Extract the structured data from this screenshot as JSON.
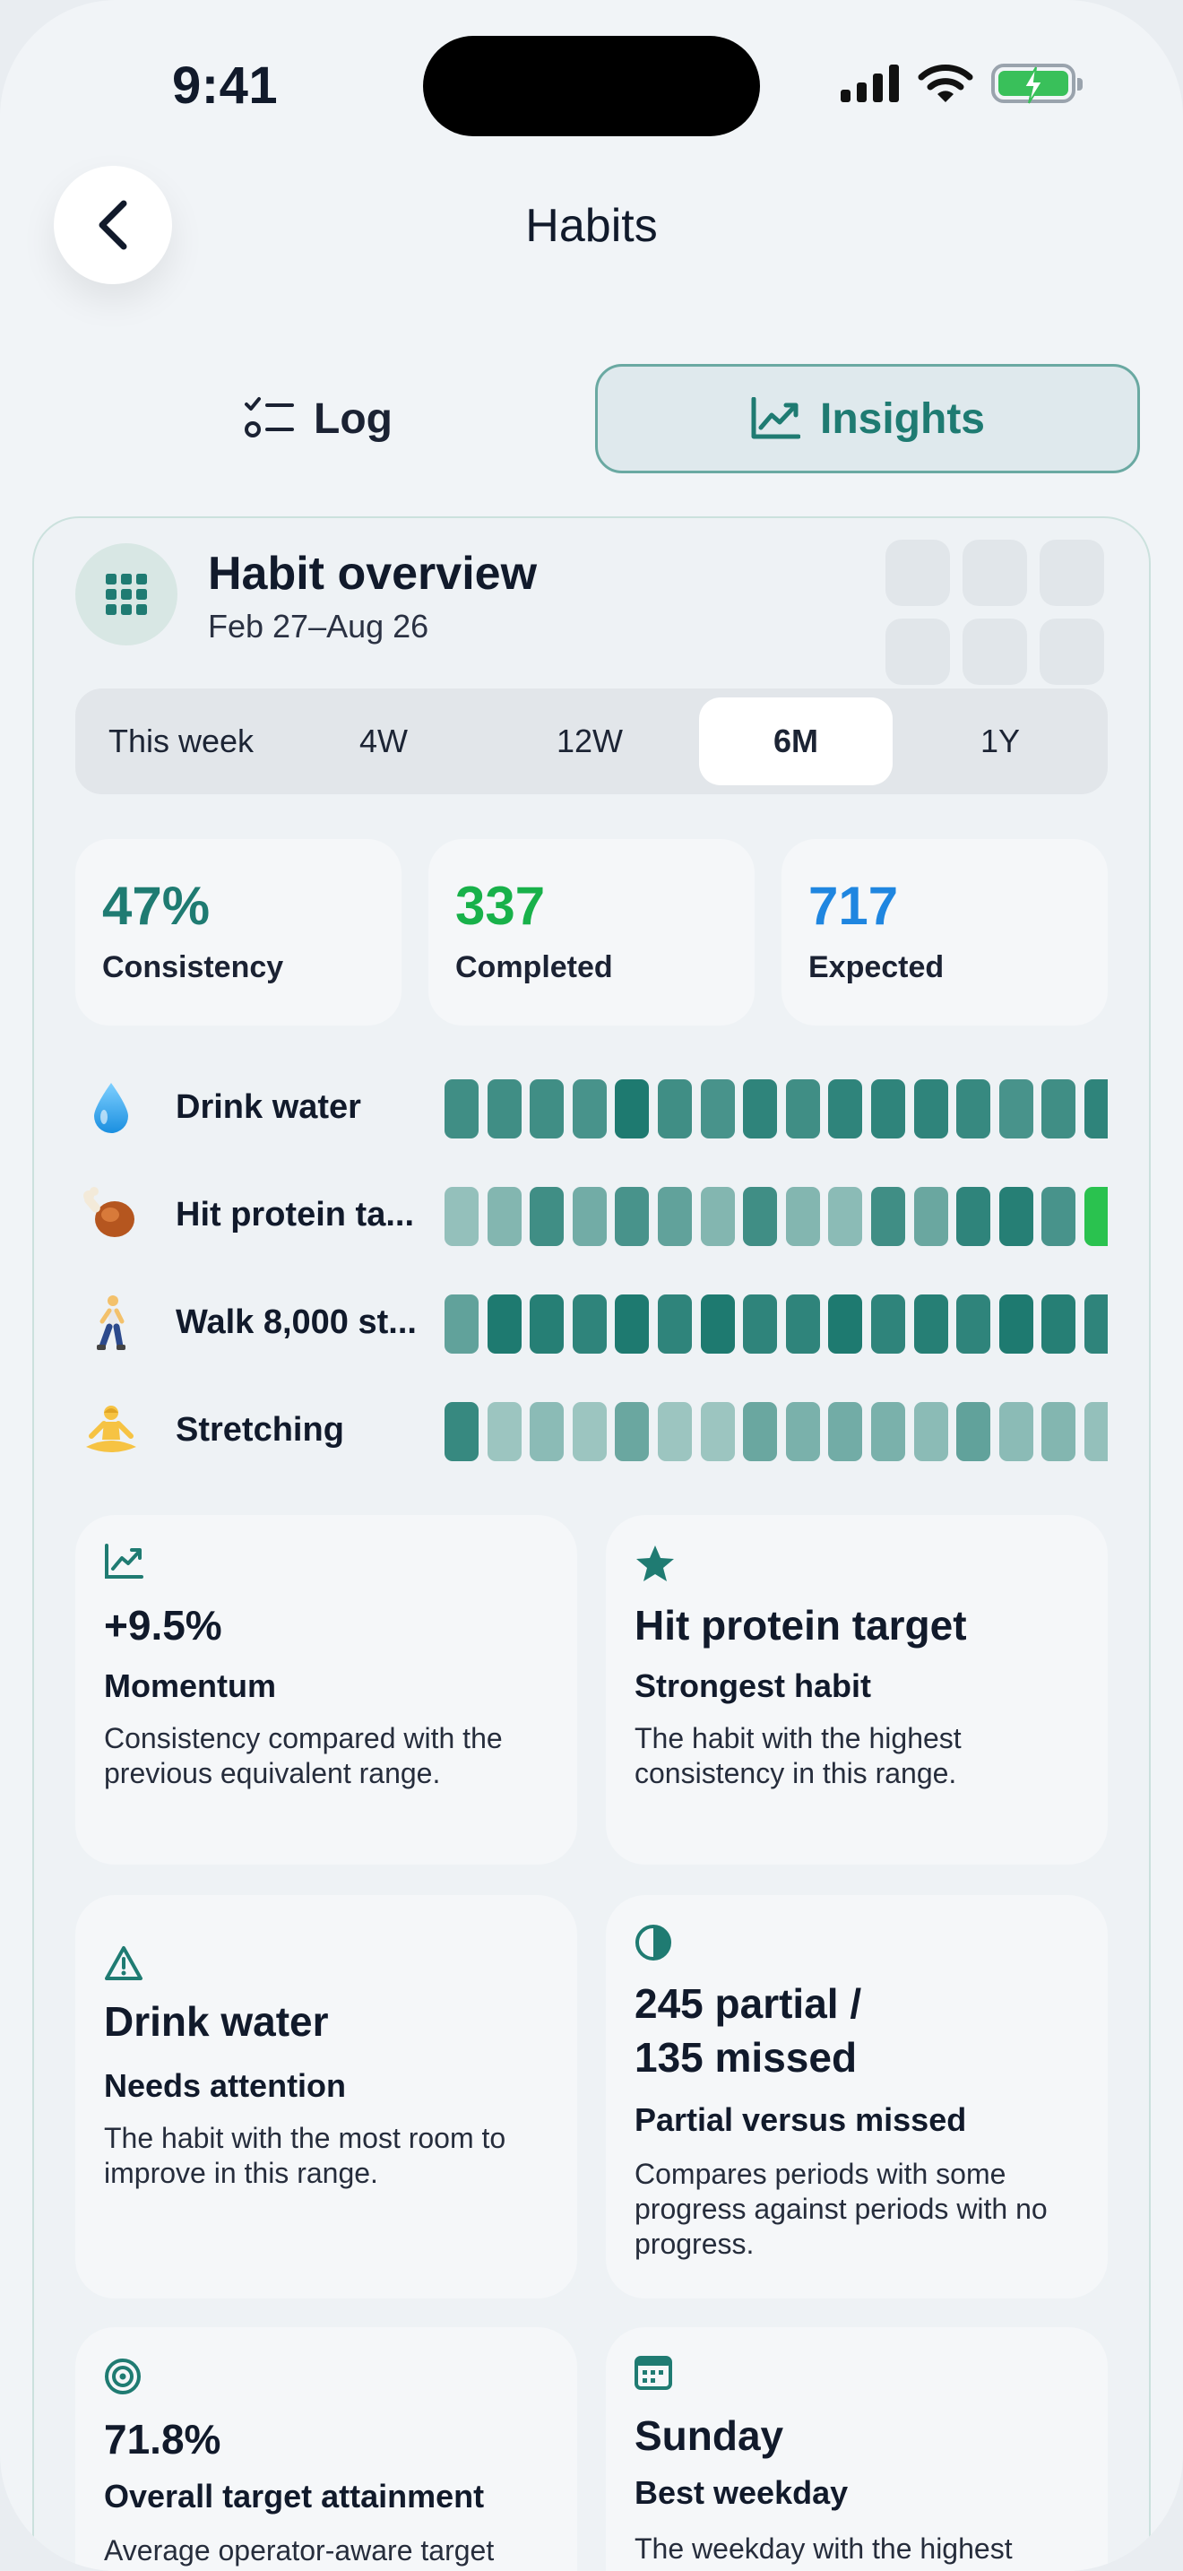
{
  "status_bar": {
    "time": "9:41"
  },
  "header": {
    "title": "Habits"
  },
  "tabs": [
    {
      "label": "Log",
      "icon": "checklist-icon",
      "active": false
    },
    {
      "label": "Insights",
      "icon": "chart-line-icon",
      "active": true
    }
  ],
  "overview": {
    "title": "Habit overview",
    "date_range": "Feb 27–Aug 26",
    "ranges": [
      "This week",
      "4W",
      "12W",
      "6M",
      "1Y"
    ],
    "selected_range": "6M",
    "stats": [
      {
        "value": "47%",
        "label": "Consistency",
        "color": "#1f7b72"
      },
      {
        "value": "337",
        "label": "Completed",
        "color": "#18b14a"
      },
      {
        "value": "717",
        "label": "Expected",
        "color": "#1f86e0"
      }
    ],
    "habits": [
      {
        "emoji": "water-drop-icon",
        "name": "Drink water",
        "levels": [
          0.8,
          0.8,
          0.8,
          0.75,
          1,
          0.8,
          0.75,
          0.9,
          0.8,
          0.9,
          0.9,
          0.9,
          0.85,
          0.75,
          0.8,
          0.9
        ]
      },
      {
        "emoji": "drumstick-icon",
        "name": "Hit protein ta...",
        "levels": [
          0.3,
          0.4,
          0.8,
          0.5,
          0.75,
          0.6,
          0.4,
          0.8,
          0.4,
          0.35,
          0.8,
          0.55,
          0.9,
          0.95,
          0.75,
          2
        ]
      },
      {
        "emoji": "walking-person-icon",
        "name": "Walk 8,000 st...",
        "levels": [
          0.6,
          1,
          0.95,
          0.9,
          1,
          0.9,
          1,
          0.9,
          0.9,
          1,
          0.9,
          0.95,
          0.9,
          1,
          0.95,
          0.9
        ]
      },
      {
        "emoji": "meditation-icon",
        "name": "Stretching",
        "levels": [
          0.85,
          0.25,
          0.35,
          0.25,
          0.55,
          0.25,
          0.25,
          0.55,
          0.45,
          0.5,
          0.45,
          0.35,
          0.6,
          0.35,
          0.4,
          0.3
        ]
      }
    ]
  },
  "insights": [
    {
      "icon": "trend-up-icon",
      "value": "+9.5%",
      "label": "Momentum",
      "desc": "Consistency compared with the previous equivalent range."
    },
    {
      "icon": "star-icon",
      "value": "Hit protein target",
      "label": "Strongest habit",
      "desc": "The habit with the highest consistency in this range."
    },
    {
      "icon": "warning-icon",
      "value": "Drink water",
      "label": "Needs attention",
      "desc": "The habit with the most room to improve in this range."
    },
    {
      "icon": "half-circle-icon",
      "value": "245 partial / 135 missed",
      "label": "Partial versus missed",
      "desc": "Compares periods with some progress against periods with no progress."
    },
    {
      "icon": "target-icon",
      "value": "71.8%",
      "label": "Overall target attainment",
      "desc": "Average operator-aware target"
    },
    {
      "icon": "calendar-icon",
      "value": "Sunday",
      "label": "Best weekday",
      "desc": "The weekday with the highest"
    }
  ],
  "colors": {
    "accent": "#1f7b72",
    "complete": "#1e7a70",
    "partial_light": "#b5d3cf",
    "highlight": "#2ac24f"
  }
}
